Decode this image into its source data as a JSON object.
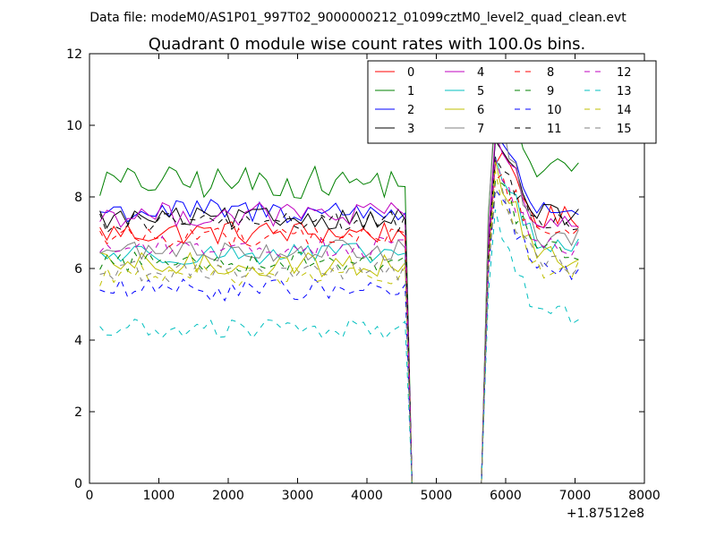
{
  "chart_data": {
    "type": "line",
    "suptitle": "Data file: modeM0/AS1P01_997T02_9000000212_01099cztM0_level2_quad_clean.evt",
    "title": "Quadrant 0 module wise count rates with 100.0s bins.",
    "xlabel": "",
    "ylabel": "",
    "x_offset_label": "+1.87512e8",
    "xlim": [
      0,
      8000
    ],
    "ylim": [
      0,
      12
    ],
    "xticks": [
      0,
      1000,
      2000,
      3000,
      4000,
      5000,
      6000,
      7000,
      8000
    ],
    "yticks": [
      0,
      2,
      4,
      6,
      8,
      10,
      12
    ],
    "grid": false,
    "legend": {
      "placement": "top-right",
      "columns": 4
    },
    "x": {
      "start": 150,
      "step": 100,
      "count": 70,
      "unit": "s"
    },
    "series": [
      {
        "name": "0",
        "color": "#ff0000",
        "style": "solid",
        "level": 7.0,
        "peak": 9.2,
        "tail": 7.4,
        "amp": 0.35
      },
      {
        "name": "1",
        "color": "#008000",
        "style": "solid",
        "level": 8.4,
        "peak": 10.7,
        "tail": 8.8,
        "amp": 0.45
      },
      {
        "name": "2",
        "color": "#0000ff",
        "style": "solid",
        "level": 7.6,
        "peak": 9.7,
        "tail": 7.7,
        "amp": 0.35
      },
      {
        "name": "3",
        "color": "#000000",
        "style": "solid",
        "level": 7.4,
        "peak": 9.6,
        "tail": 7.5,
        "amp": 0.3
      },
      {
        "name": "4",
        "color": "#bf00bf",
        "style": "solid",
        "level": 7.5,
        "peak": 9.7,
        "tail": 7.3,
        "amp": 0.35
      },
      {
        "name": "5",
        "color": "#00bfbf",
        "style": "solid",
        "level": 6.4,
        "peak": 9.0,
        "tail": 6.6,
        "amp": 0.3
      },
      {
        "name": "6",
        "color": "#bfbf00",
        "style": "solid",
        "level": 6.1,
        "peak": 8.8,
        "tail": 6.3,
        "amp": 0.35
      },
      {
        "name": "7",
        "color": "#808080",
        "style": "solid",
        "level": 6.5,
        "peak": 10.5,
        "tail": 6.8,
        "amp": 0.3
      },
      {
        "name": "8",
        "color": "#ff0000",
        "style": "dashed",
        "level": 6.9,
        "peak": 8.7,
        "tail": 7.1,
        "amp": 0.3
      },
      {
        "name": "9",
        "color": "#008000",
        "style": "dashed",
        "level": 6.2,
        "peak": 8.6,
        "tail": 6.5,
        "amp": 0.3
      },
      {
        "name": "10",
        "color": "#0000ff",
        "style": "dashed",
        "level": 5.4,
        "peak": 8.3,
        "tail": 5.9,
        "amp": 0.3
      },
      {
        "name": "11",
        "color": "#000000",
        "style": "dashed",
        "level": 7.3,
        "peak": 9.1,
        "tail": 7.3,
        "amp": 0.3
      },
      {
        "name": "12",
        "color": "#bf00bf",
        "style": "dashed",
        "level": 6.6,
        "peak": 9.0,
        "tail": 6.6,
        "amp": 0.3
      },
      {
        "name": "13",
        "color": "#00bfbf",
        "style": "dashed",
        "level": 4.3,
        "peak": 7.5,
        "tail": 4.7,
        "amp": 0.3
      },
      {
        "name": "14",
        "color": "#bfbf00",
        "style": "dashed",
        "level": 5.8,
        "peak": 8.5,
        "tail": 6.0,
        "amp": 0.3
      },
      {
        "name": "15",
        "color": "#808080",
        "style": "dashed",
        "level": 5.9,
        "peak": 8.4,
        "tail": 6.1,
        "amp": 0.3
      }
    ],
    "gap": {
      "drop_start": 4550,
      "zero_from": 4650,
      "zero_to": 5650,
      "rise_end": 5850
    }
  }
}
